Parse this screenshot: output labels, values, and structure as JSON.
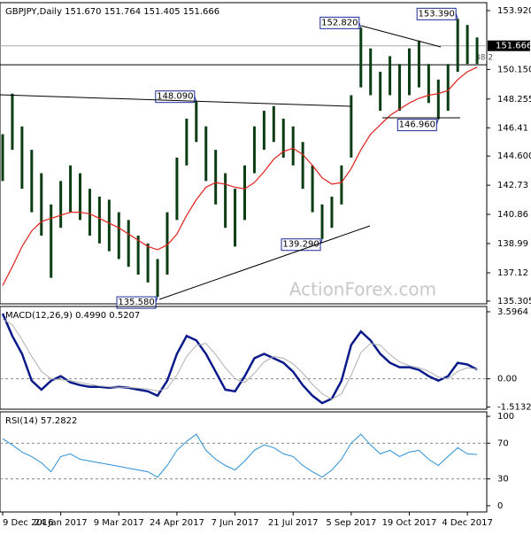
{
  "chart_data": [
    {
      "type": "range-bar",
      "title": "GBPJPY,Daily  151.670 151.764 151.405 151.666",
      "watermark": "ActionForex.com",
      "categories": [
        "9 Dec 2016",
        null,
        null,
        null,
        null,
        null,
        "24 Jan 2017",
        null,
        null,
        null,
        null,
        null,
        "9 Mar 2017",
        null,
        null,
        null,
        null,
        null,
        "24 Apr 2017",
        null,
        null,
        null,
        null,
        null,
        "7 Jun 2017",
        null,
        null,
        null,
        null,
        null,
        "21 Jul 2017",
        null,
        null,
        null,
        null,
        null,
        "5 Sep 2017",
        null,
        null,
        null,
        null,
        null,
        "19 Oct 2017",
        null,
        null,
        null,
        null,
        null,
        "4 Dec 2017",
        null
      ],
      "high": [
        146.0,
        148.6,
        146.5,
        145.0,
        143.5,
        141.5,
        143.0,
        144.0,
        143.5,
        142.5,
        142.0,
        141.8,
        141.0,
        140.5,
        139.5,
        139.0,
        138.0,
        141.0,
        144.5,
        147.0,
        148.09,
        146.5,
        145.0,
        143.5,
        142.5,
        144.0,
        146.5,
        147.5,
        147.8,
        147.0,
        146.5,
        145.5,
        144.0,
        141.5,
        142.0,
        144.0,
        148.5,
        152.82,
        151.5,
        150.0,
        151.0,
        150.5,
        151.5,
        152.0,
        150.5,
        149.5,
        150.5,
        153.39,
        153.0,
        152.2
      ],
      "low": [
        143.0,
        145.0,
        142.5,
        141.0,
        139.5,
        136.8,
        140.0,
        141.0,
        140.5,
        139.5,
        139.0,
        138.5,
        138.0,
        137.5,
        137.0,
        136.5,
        135.58,
        137.0,
        140.5,
        144.0,
        145.5,
        143.0,
        141.5,
        140.0,
        138.8,
        140.5,
        143.5,
        145.0,
        145.5,
        144.5,
        144.0,
        142.5,
        141.0,
        139.29,
        140.0,
        141.5,
        144.5,
        149.0,
        148.5,
        147.5,
        148.5,
        147.5,
        148.5,
        149.0,
        148.0,
        146.96,
        147.5,
        150.0,
        150.5,
        150.5
      ],
      "bar_color": "#0a3d14",
      "ma": {
        "color": "#e0201b",
        "values": [
          136.3,
          137.5,
          138.8,
          139.8,
          140.4,
          140.6,
          140.8,
          141.0,
          141.0,
          140.9,
          140.6,
          140.3,
          140.0,
          139.6,
          139.2,
          138.8,
          138.6,
          138.9,
          139.6,
          140.8,
          141.8,
          142.6,
          142.9,
          142.8,
          142.6,
          142.5,
          142.9,
          143.6,
          144.4,
          144.9,
          145.1,
          144.7,
          144.0,
          143.2,
          142.8,
          142.9,
          143.8,
          145.0,
          146.0,
          146.6,
          147.2,
          147.6,
          148.0,
          148.3,
          148.5,
          148.6,
          148.8,
          149.5,
          150.0,
          150.3
        ]
      },
      "annotations": [
        {
          "label": "153.390",
          "value": 153.39
        },
        {
          "label": "152.820",
          "value": 152.82
        },
        {
          "label": "148.090",
          "value": 148.09
        },
        {
          "label": "146.960",
          "value": 146.96
        },
        {
          "label": "139.290",
          "value": 139.29
        },
        {
          "label": "135.580",
          "value": 135.58
        }
      ],
      "last_price": 151.666,
      "fib_label": "38.2",
      "fib_level": 150.45,
      "ylim": [
        135.13,
        154.43
      ],
      "yticks": [
        {
          "value": 153.92,
          "label": "153.920"
        },
        {
          "value": 150.15,
          "label": "150.150"
        },
        148.255,
        146.41,
        {
          "value": 144.6,
          "label": "144.600"
        },
        142.73,
        140.86,
        138.99,
        137.12,
        135.305
      ]
    },
    {
      "type": "line",
      "title": "MACD(12,26,9) 0.4990 0.5207",
      "series": [
        {
          "color": "#0a1a8a",
          "values": [
            3.5,
            2.3,
            1.34,
            -0.1,
            -0.58,
            -0.1,
            0.14,
            -0.19,
            -0.34,
            -0.43,
            -0.43,
            -0.48,
            -0.43,
            -0.48,
            -0.58,
            -0.67,
            -0.91,
            -0.1,
            1.34,
            2.3,
            2.06,
            1.34,
            0.38,
            -0.58,
            -0.67,
            0.14,
            1.1,
            1.34,
            1.1,
            0.86,
            0.38,
            -0.34,
            -0.91,
            -1.3,
            -1.06,
            -0.1,
            1.82,
            2.54,
            2.06,
            1.34,
            0.86,
            0.62,
            0.62,
            0.48,
            0.14,
            -0.1,
            0.14,
            0.86,
            0.77,
            0.499
          ]
        },
        {
          "color": "#b0b0b0",
          "values": [
            3.2,
            2.9,
            2.1,
            1.2,
            0.4,
            0.0,
            -0.05,
            -0.1,
            -0.2,
            -0.3,
            -0.38,
            -0.43,
            -0.45,
            -0.46,
            -0.5,
            -0.55,
            -0.65,
            -0.5,
            0.2,
            1.2,
            1.8,
            1.9,
            1.3,
            0.6,
            0.0,
            -0.2,
            0.3,
            0.9,
            1.2,
            1.1,
            0.8,
            0.3,
            -0.3,
            -0.8,
            -1.1,
            -0.8,
            0.2,
            1.4,
            1.9,
            1.8,
            1.3,
            0.9,
            0.7,
            0.6,
            0.4,
            0.1,
            0.0,
            0.4,
            0.6,
            0.5207
          ]
        }
      ],
      "guides": [
        0
      ],
      "ylim": [
        -1.63,
        3.88
      ],
      "yticks": [
        3.5964,
        {
          "value": 0,
          "label": "0.00"
        },
        -1.5132
      ]
    },
    {
      "type": "line",
      "title": "RSI(14) 57.2822",
      "series": [
        {
          "color": "#2a8fd6",
          "values": [
            75,
            68,
            60,
            55,
            48,
            38,
            55,
            58,
            52,
            50,
            48,
            46,
            44,
            42,
            40,
            38,
            32,
            45,
            62,
            72,
            80,
            62,
            52,
            45,
            40,
            50,
            62,
            68,
            65,
            58,
            55,
            45,
            38,
            32,
            40,
            52,
            70,
            80,
            68,
            58,
            62,
            55,
            60,
            62,
            52,
            45,
            55,
            65,
            58,
            57.2822
          ]
        }
      ],
      "guides": [
        70,
        30
      ],
      "ylim": [
        -7,
        105
      ],
      "yticks": [
        100,
        70,
        30,
        0
      ]
    }
  ]
}
